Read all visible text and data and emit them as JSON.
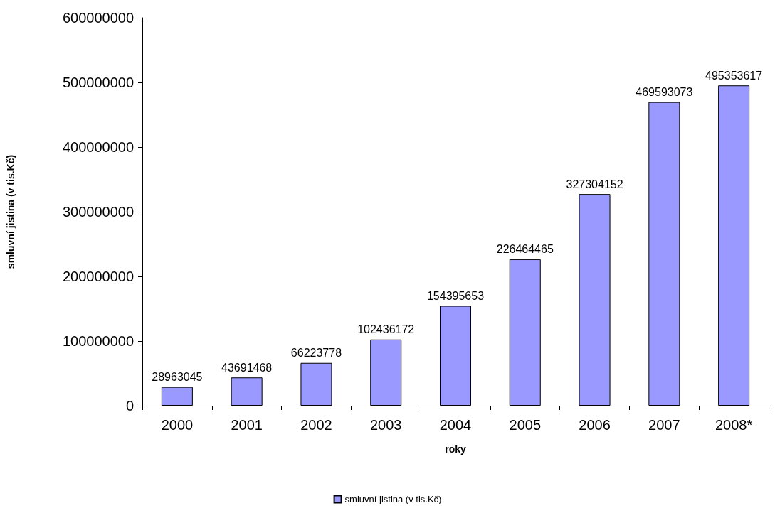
{
  "chart_data": {
    "type": "bar",
    "xlabel": "roky",
    "ylabel": "smluvní jistina (v tis.Kč)",
    "categories": [
      "2000",
      "2001",
      "2002",
      "2003",
      "2004",
      "2005",
      "2006",
      "2007",
      "2008*"
    ],
    "series": [
      {
        "name": "smluvní jistina (v tis.Kč)",
        "color": "#9999ff",
        "values": [
          28963045,
          43691468,
          66223778,
          102436172,
          154395653,
          226464465,
          327304152,
          469593073,
          495353617
        ]
      }
    ],
    "ylim": [
      0,
      600000000
    ],
    "yticks": [
      0,
      100000000,
      200000000,
      300000000,
      400000000,
      500000000,
      600000000
    ],
    "data_labels": true,
    "grid": false,
    "legend": "bottom"
  }
}
